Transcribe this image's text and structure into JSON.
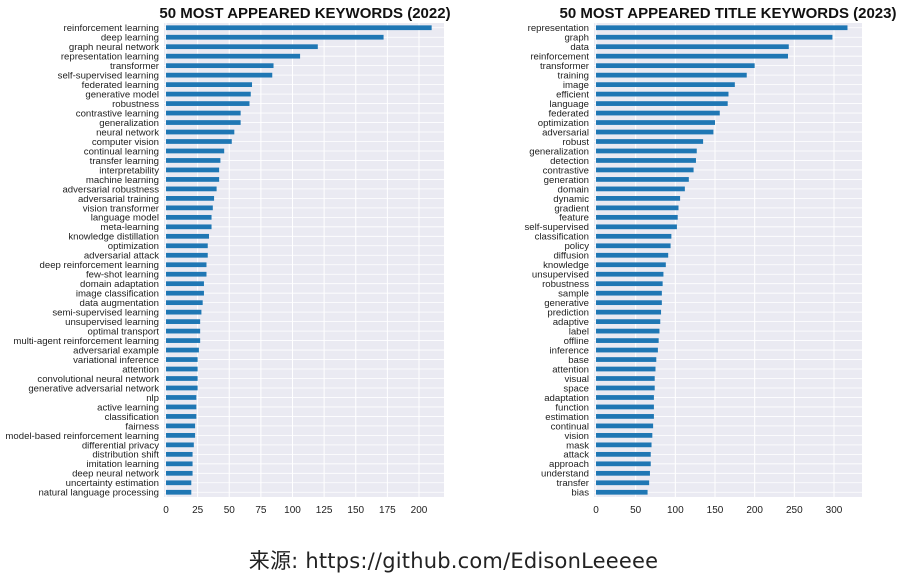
{
  "caption": "来源: https://github.com/EdisonLeeeee",
  "colors": {
    "bar": "#1f77b4",
    "plot_bg": "#eaeaf2",
    "grid": "#ffffff"
  },
  "chart_data": [
    {
      "type": "bar",
      "orientation": "horizontal",
      "title": "50 MOST APPEARED KEYWORDS (2022)",
      "xlim": [
        0,
        220
      ],
      "xticks": [
        0,
        25,
        50,
        75,
        100,
        125,
        150,
        175,
        200
      ],
      "grid": true,
      "categories": [
        "reinforcement learning",
        "deep learning",
        "graph neural network",
        "representation learning",
        "transformer",
        "self-supervised learning",
        "federated learning",
        "generative model",
        "robustness",
        "contrastive learning",
        "generalization",
        "neural network",
        "computer vision",
        "continual learning",
        "transfer learning",
        "interpretability",
        "machine learning",
        "adversarial robustness",
        "adversarial training",
        "vision transformer",
        "language model",
        "meta-learning",
        "knowledge distillation",
        "optimization",
        "adversarial attack",
        "deep reinforcement learning",
        "few-shot learning",
        "domain adaptation",
        "image classification",
        "data augmentation",
        "semi-supervised learning",
        "unsupervised learning",
        "optimal transport",
        "multi-agent reinforcement learning",
        "adversarial example",
        "variational inference",
        "attention",
        "convolutional neural network",
        "generative adversarial network",
        "nlp",
        "active learning",
        "classification",
        "fairness",
        "model-based reinforcement learning",
        "differential privacy",
        "distribution shift",
        "imitation learning",
        "deep neural network",
        "uncertainty estimation",
        "natural language processing"
      ],
      "values": [
        210,
        172,
        120,
        106,
        85,
        84,
        68,
        67,
        66,
        59,
        59,
        54,
        52,
        46,
        43,
        42,
        42,
        40,
        38,
        37,
        36,
        36,
        34,
        33,
        33,
        32,
        32,
        30,
        30,
        29,
        28,
        27,
        27,
        27,
        26,
        25,
        25,
        25,
        25,
        24,
        24,
        24,
        23,
        23,
        22,
        21,
        21,
        21,
        20,
        20
      ]
    },
    {
      "type": "bar",
      "orientation": "horizontal",
      "title": "50 MOST APPEARED TITLE KEYWORDS (2023)",
      "xlim": [
        0,
        335
      ],
      "xticks": [
        0,
        50,
        100,
        150,
        200,
        250,
        300
      ],
      "grid": true,
      "categories": [
        "representation",
        "graph",
        "data",
        "reinforcement",
        "transformer",
        "training",
        "image",
        "efficient",
        "language",
        "federated",
        "optimization",
        "adversarial",
        "robust",
        "generalization",
        "detection",
        "contrastive",
        "generation",
        "domain",
        "dynamic",
        "gradient",
        "feature",
        "self-supervised",
        "classification",
        "policy",
        "diffusion",
        "knowledge",
        "unsupervised",
        "robustness",
        "sample",
        "generative",
        "prediction",
        "adaptive",
        "label",
        "offline",
        "inference",
        "base",
        "attention",
        "visual",
        "space",
        "adaptation",
        "function",
        "estimation",
        "continual",
        "vision",
        "mask",
        "attack",
        "approach",
        "understand",
        "transfer",
        "bias"
      ],
      "values": [
        317,
        298,
        243,
        242,
        200,
        190,
        175,
        167,
        166,
        156,
        150,
        148,
        135,
        127,
        126,
        123,
        117,
        112,
        106,
        104,
        103,
        102,
        95,
        94,
        91,
        88,
        85,
        84,
        83,
        83,
        82,
        81,
        80,
        79,
        78,
        76,
        75,
        74,
        74,
        73,
        73,
        73,
        72,
        71,
        70,
        69,
        69,
        68,
        67,
        65
      ]
    }
  ]
}
